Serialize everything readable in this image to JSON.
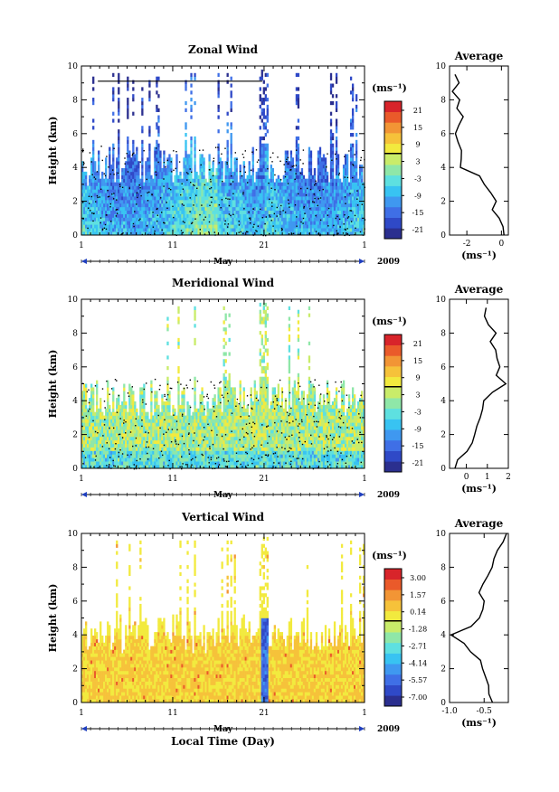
{
  "xaxis": {
    "ticks": [
      "1",
      "11",
      "21",
      "1"
    ],
    "month_label": "May",
    "year_label": "2009",
    "xlabel": "Local Time (Day)"
  },
  "colormap": [
    "#2b2f8f",
    "#2f49c7",
    "#3f6fe6",
    "#3f98f0",
    "#38c3f2",
    "#5ee0e0",
    "#8fe7a8",
    "#c9ec6a",
    "#f2ea3e",
    "#f6c23a",
    "#f29535",
    "#ea5a2a",
    "#d8242a"
  ],
  "chart_data": [
    {
      "type": "heatmap",
      "title": "Zonal Wind",
      "ylabel": "Height (km)",
      "xlim": [
        1,
        32
      ],
      "ylim": [
        0,
        10
      ],
      "yticks": [
        "0",
        "2",
        "4",
        "6",
        "8",
        "10"
      ],
      "colorbar": {
        "unit": "(ms⁻¹)",
        "range": [
          -24,
          24
        ],
        "ticks": [
          "21",
          "15",
          "9",
          "3",
          "-3",
          "-9",
          "-15",
          "-21"
        ]
      },
      "profile": {
        "title": "Average",
        "xlabel": "(ms⁻¹)",
        "xlim": [
          -3,
          0.4
        ],
        "xticks": [
          "-2",
          "0"
        ],
        "xtick_values": [
          -2,
          0
        ],
        "heights": [
          0,
          0.5,
          1,
          1.5,
          2,
          2.5,
          3,
          3.5,
          4,
          4.5,
          5,
          5.5,
          6,
          6.5,
          7,
          7.5,
          8,
          8.5,
          9,
          9.5
        ],
        "values": [
          0.2,
          0.1,
          -0.2,
          -0.6,
          -0.2,
          -0.7,
          -0.9,
          -1.2,
          -2.4,
          -2.3,
          -2.3,
          -2.5,
          -2.7,
          -2.5,
          -2.3,
          -2.6,
          -2.5,
          -2.8,
          -2.4,
          -2.7
        ]
      }
    },
    {
      "type": "heatmap",
      "title": "Meridional Wind",
      "ylabel": "Height (km)",
      "xlim": [
        1,
        32
      ],
      "ylim": [
        0,
        10
      ],
      "yticks": [
        "0",
        "2",
        "4",
        "6",
        "8",
        "10"
      ],
      "colorbar": {
        "unit": "(ms⁻¹)",
        "range": [
          -24,
          24
        ],
        "ticks": [
          "21",
          "15",
          "9",
          "3",
          "-3",
          "-9",
          "-15",
          "-21"
        ]
      },
      "profile": {
        "title": "Average",
        "xlabel": "(ms⁻¹)",
        "xlim": [
          -0.8,
          2
        ],
        "xticks": [
          "0",
          "1",
          "2"
        ],
        "xtick_values": [
          0,
          1,
          2
        ],
        "heights": [
          0,
          0.5,
          1,
          1.5,
          2,
          2.5,
          3,
          3.5,
          4,
          4.5,
          5,
          5.5,
          6,
          6.5,
          7,
          7.5,
          8,
          8.5,
          9,
          9.5
        ],
        "values": [
          -0.6,
          -0.4,
          0.0,
          0.3,
          0.4,
          0.5,
          0.6,
          0.7,
          0.8,
          1.2,
          1.9,
          1.4,
          1.6,
          1.5,
          1.4,
          1.2,
          1.4,
          1.1,
          0.9,
          1.0
        ]
      }
    },
    {
      "type": "heatmap",
      "title": "Vertical Wind",
      "ylabel": "Height (km)",
      "xlim": [
        1,
        32
      ],
      "ylim": [
        0,
        10
      ],
      "yticks": [
        "0",
        "2",
        "4",
        "6",
        "8",
        "10"
      ],
      "colorbar": {
        "unit": "(ms⁻¹)",
        "range": [
          -8.5,
          4.5
        ],
        "ticks": [
          "3.00",
          "1.57",
          "0.14",
          "-1.28",
          "-2.71",
          "-4.14",
          "-5.57",
          "-7.00"
        ]
      },
      "profile": {
        "title": "Average",
        "xlabel": "(ms⁻¹)",
        "xlim": [
          -1.0,
          -0.15
        ],
        "xticks": [
          "-1.0",
          "-0.5"
        ],
        "xtick_values": [
          -1.0,
          -0.5
        ],
        "heights": [
          0,
          0.5,
          1,
          1.5,
          2,
          2.5,
          3,
          3.5,
          4,
          4.5,
          5,
          5.5,
          6,
          6.5,
          7,
          7.5,
          8,
          8.5,
          9,
          9.5,
          10
        ],
        "values": [
          -0.4,
          -0.45,
          -0.42,
          -0.48,
          -0.5,
          -0.55,
          -0.7,
          -0.8,
          -1.0,
          -0.7,
          -0.55,
          -0.52,
          -0.48,
          -0.55,
          -0.5,
          -0.45,
          -0.4,
          -0.35,
          -0.3,
          -0.25,
          -0.2
        ]
      }
    }
  ]
}
